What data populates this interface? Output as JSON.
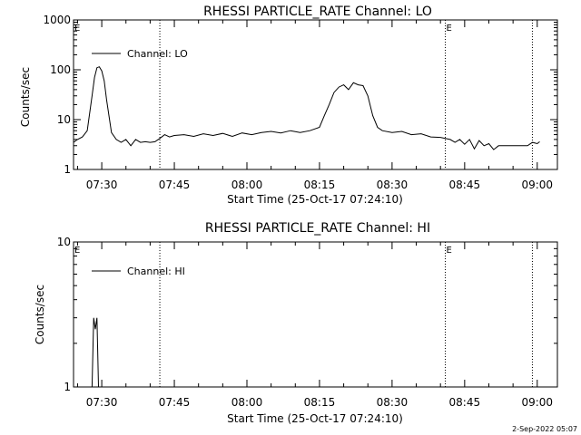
{
  "footer": {
    "date": "2-Sep-2022 05:07"
  },
  "chart_data": [
    {
      "type": "line",
      "title": "RHESSI PARTICLE_RATE Channel: LO",
      "xlabel": "Start Time (25-Oct-17 07:24:10)",
      "ylabel": "Counts/sec",
      "x_ticks": [
        "07:30",
        "07:45",
        "08:00",
        "08:15",
        "08:30",
        "08:45",
        "09:00"
      ],
      "y_ticks": [
        "1",
        "10",
        "100",
        "1000"
      ],
      "x_range": [
        "07:24:10",
        "09:04:10"
      ],
      "ylim": [
        1,
        1000
      ],
      "y_scale": "log",
      "legend": {
        "position": "top-left",
        "entries": [
          "Channel: LO"
        ]
      },
      "markers": [
        {
          "label": "E",
          "time": "07:24:10"
        },
        {
          "label": "",
          "time": "07:42:00"
        },
        {
          "label": "E",
          "time": "08:41:00"
        },
        {
          "label": "",
          "time": "08:59:00"
        }
      ],
      "series": [
        {
          "name": "Channel: LO",
          "points": [
            [
              "07:24:10",
              3.5
            ],
            [
              "07:25:00",
              4
            ],
            [
              "07:26:00",
              4.5
            ],
            [
              "07:27:00",
              6
            ],
            [
              "07:28:00",
              30
            ],
            [
              "07:28:30",
              70
            ],
            [
              "07:29:00",
              110
            ],
            [
              "07:29:30",
              115
            ],
            [
              "07:30:00",
              95
            ],
            [
              "07:30:30",
              60
            ],
            [
              "07:31:00",
              25
            ],
            [
              "07:32:00",
              5.5
            ],
            [
              "07:33:00",
              4
            ],
            [
              "07:34:00",
              3.5
            ],
            [
              "07:35:00",
              4
            ],
            [
              "07:36:00",
              3
            ],
            [
              "07:37:00",
              4
            ],
            [
              "07:38:00",
              3.5
            ],
            [
              "07:39:00",
              3.6
            ],
            [
              "07:40:00",
              3.5
            ],
            [
              "07:41:00",
              3.6
            ],
            [
              "07:42:00",
              4.2
            ],
            [
              "07:43:00",
              5
            ],
            [
              "07:44:00",
              4.5
            ],
            [
              "07:45:00",
              4.8
            ],
            [
              "07:47:00",
              5
            ],
            [
              "07:49:00",
              4.6
            ],
            [
              "07:51:00",
              5.2
            ],
            [
              "07:53:00",
              4.8
            ],
            [
              "07:55:00",
              5.3
            ],
            [
              "07:57:00",
              4.6
            ],
            [
              "07:59:00",
              5.4
            ],
            [
              "08:01:00",
              5
            ],
            [
              "08:03:00",
              5.5
            ],
            [
              "08:05:00",
              5.8
            ],
            [
              "08:07:00",
              5.4
            ],
            [
              "08:09:00",
              6
            ],
            [
              "08:11:00",
              5.5
            ],
            [
              "08:13:00",
              6
            ],
            [
              "08:15:00",
              7
            ],
            [
              "08:16:00",
              12
            ],
            [
              "08:17:00",
              20
            ],
            [
              "08:18:00",
              35
            ],
            [
              "08:19:00",
              45
            ],
            [
              "08:20:00",
              50
            ],
            [
              "08:21:00",
              40
            ],
            [
              "08:22:00",
              55
            ],
            [
              "08:23:00",
              50
            ],
            [
              "08:24:00",
              48
            ],
            [
              "08:25:00",
              30
            ],
            [
              "08:26:00",
              12
            ],
            [
              "08:27:00",
              7
            ],
            [
              "08:28:00",
              6
            ],
            [
              "08:30:00",
              5.5
            ],
            [
              "08:32:00",
              5.8
            ],
            [
              "08:34:00",
              5
            ],
            [
              "08:36:00",
              5.2
            ],
            [
              "08:38:00",
              4.5
            ],
            [
              "08:40:00",
              4.4
            ],
            [
              "08:41:00",
              4.2
            ],
            [
              "08:42:00",
              4
            ],
            [
              "08:43:00",
              3.5
            ],
            [
              "08:44:00",
              4
            ],
            [
              "08:45:00",
              3.2
            ],
            [
              "08:46:00",
              4
            ],
            [
              "08:47:00",
              2.6
            ],
            [
              "08:48:00",
              3.8
            ],
            [
              "08:49:00",
              3
            ],
            [
              "08:50:00",
              3.3
            ],
            [
              "08:51:00",
              2.5
            ],
            [
              "08:52:00",
              3
            ],
            [
              "08:54:00",
              3
            ],
            [
              "08:56:00",
              3
            ],
            [
              "08:58:00",
              3
            ],
            [
              "08:59:00",
              3.5
            ],
            [
              "09:00:00",
              3.3
            ],
            [
              "09:00:30",
              3.6
            ]
          ]
        }
      ]
    },
    {
      "type": "line",
      "title": "RHESSI PARTICLE_RATE Channel: HI",
      "xlabel": "Start Time (25-Oct-17 07:24:10)",
      "ylabel": "Counts/sec",
      "x_ticks": [
        "07:30",
        "07:45",
        "08:00",
        "08:15",
        "08:30",
        "08:45",
        "09:00"
      ],
      "y_ticks": [
        "1",
        "10"
      ],
      "x_range": [
        "07:24:10",
        "09:04:10"
      ],
      "ylim": [
        1,
        10
      ],
      "y_scale": "log",
      "legend": {
        "position": "top-left",
        "entries": [
          "Channel: HI"
        ]
      },
      "markers": [
        {
          "label": "E",
          "time": "07:24:10"
        },
        {
          "label": "",
          "time": "07:42:00"
        },
        {
          "label": "E",
          "time": "08:41:00"
        },
        {
          "label": "",
          "time": "08:59:00"
        }
      ],
      "series": [
        {
          "name": "Channel: HI",
          "points": [
            [
              "07:28:00",
              1
            ],
            [
              "07:28:20",
              3
            ],
            [
              "07:28:40",
              2.5
            ],
            [
              "07:29:00",
              3
            ],
            [
              "07:29:20",
              1
            ]
          ]
        }
      ]
    }
  ]
}
